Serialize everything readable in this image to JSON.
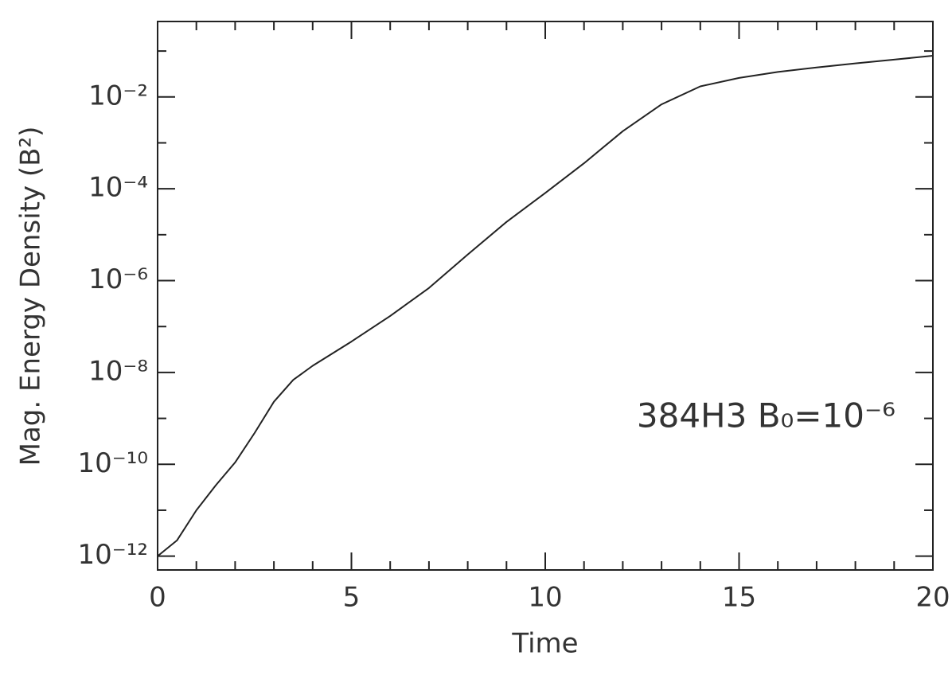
{
  "chart_data": {
    "type": "line",
    "x_label": "Time",
    "y_label": "Mag. Energy Density (B²)",
    "annotation": "384H3  B₀=10⁻⁶",
    "x": [
      0,
      0.5,
      1,
      1.5,
      2,
      2.5,
      3,
      3.5,
      4,
      5,
      6,
      7,
      8,
      9,
      10,
      11,
      12,
      13,
      14,
      15,
      16,
      17,
      18,
      19,
      20
    ],
    "values": [
      1e-12,
      2.2e-12,
      1e-11,
      3.5e-11,
      1.1e-10,
      4.8e-10,
      2.3e-09,
      6.9e-09,
      1.4e-08,
      4.7e-08,
      1.7e-07,
      6.9e-07,
      3.7e-06,
      1.9e-05,
      8.1e-05,
      0.00036,
      0.0018,
      0.0069,
      0.017,
      0.026,
      0.035,
      0.044,
      0.054,
      0.065,
      0.079
    ],
    "color": "#222222",
    "log_y": true,
    "xlim": [
      0,
      20
    ],
    "xticks": [
      0,
      5,
      10,
      15,
      20
    ],
    "xticks_minor": [
      1,
      2,
      3,
      4,
      6,
      7,
      8,
      9,
      11,
      12,
      13,
      14,
      16,
      17,
      18,
      19
    ],
    "ylim": [
      5e-13,
      0.44
    ],
    "yticks": [
      {
        "value": 1e-12,
        "label": "10⁻¹²"
      },
      {
        "value": 1e-10,
        "label": "10⁻¹⁰"
      },
      {
        "value": 1e-08,
        "label": "10⁻⁸"
      },
      {
        "value": 1e-06,
        "label": "10⁻⁶"
      },
      {
        "value": 0.0001,
        "label": "10⁻⁴"
      },
      {
        "value": 0.01,
        "label": "10⁻²"
      }
    ],
    "yticks_minor": [
      1e-11,
      1e-09,
      1e-07,
      1e-05,
      0.001,
      0.1
    ]
  }
}
